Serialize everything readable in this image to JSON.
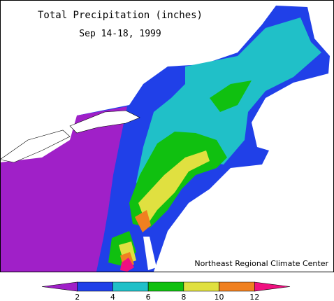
{
  "title": "Total Precipitation (inches)",
  "subtitle": "Sep 14-18, 1999",
  "credit": "Northeast Regional Climate Center",
  "legend": {
    "colors": [
      "#a020c8",
      "#2040e8",
      "#20c0c8",
      "#10c010",
      "#e0e040",
      "#f08020",
      "#f01080"
    ],
    "ticks": [
      2,
      4,
      6,
      8,
      10,
      12
    ]
  }
}
